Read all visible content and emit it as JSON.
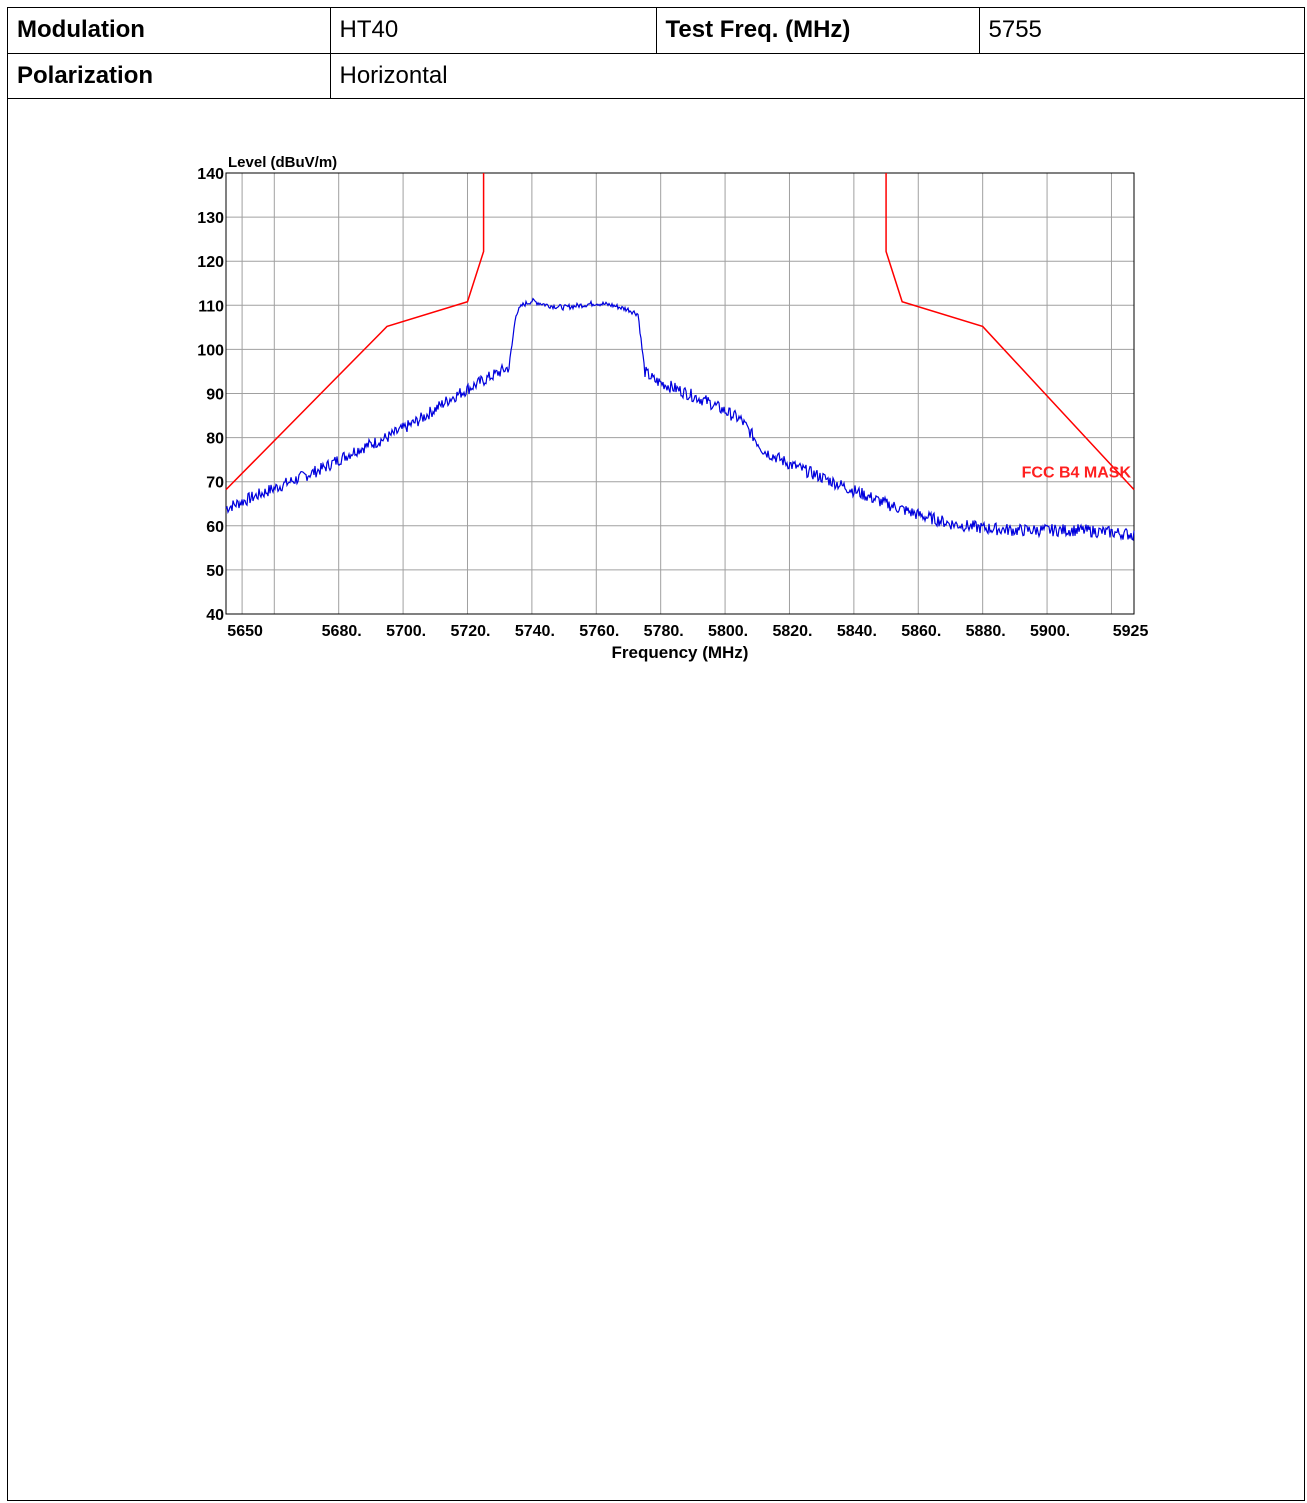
{
  "info": {
    "modulation_label": "Modulation",
    "modulation_value": "HT40",
    "test_freq_label": "Test Freq. (MHz)",
    "test_freq_value": "5755",
    "polarization_label": "Polarization",
    "polarization_value": "Horizontal"
  },
  "chart_data": {
    "type": "line",
    "ylabel": "Level (dBuV/m)",
    "xlabel": "Frequency (MHz)",
    "xlim": [
      5645,
      5927
    ],
    "ylim": [
      40,
      140
    ],
    "grid": true,
    "x_ticks": [
      {
        "value": 5650,
        "label": "5650"
      },
      {
        "value": 5680,
        "label": "5680."
      },
      {
        "value": 5700,
        "label": "5700."
      },
      {
        "value": 5720,
        "label": "5720."
      },
      {
        "value": 5740,
        "label": "5740."
      },
      {
        "value": 5760,
        "label": "5760."
      },
      {
        "value": 5780,
        "label": "5780."
      },
      {
        "value": 5800,
        "label": "5800."
      },
      {
        "value": 5820,
        "label": "5820."
      },
      {
        "value": 5840,
        "label": "5840."
      },
      {
        "value": 5860,
        "label": "5860."
      },
      {
        "value": 5880,
        "label": "5880."
      },
      {
        "value": 5900,
        "label": "5900."
      },
      {
        "value": 5925,
        "label": "5925"
      }
    ],
    "y_ticks": [
      40,
      50,
      60,
      70,
      80,
      90,
      100,
      110,
      120,
      130,
      140
    ],
    "x_grid": [
      5650,
      5660,
      5680,
      5700,
      5720,
      5740,
      5760,
      5780,
      5800,
      5820,
      5840,
      5860,
      5880,
      5900,
      5920
    ],
    "series": [
      {
        "name": "FCC B4 MASK",
        "color": "#ff0000",
        "segments": [
          {
            "x": [
              5645,
              5695,
              5720,
              5725,
              5725
            ],
            "y": [
              68.2,
              105.2,
              110.8,
              122.2,
              140
            ]
          },
          {
            "x": [
              5850,
              5850,
              5855,
              5880,
              5927
            ],
            "y": [
              140,
              122.2,
              110.8,
              105.2,
              68.2
            ]
          }
        ]
      },
      {
        "name": "",
        "color": "#0000dd",
        "x": [
          5645,
          5655,
          5665,
          5675,
          5685,
          5695,
          5705,
          5715,
          5725,
          5733,
          5735,
          5737,
          5740,
          5745,
          5750,
          5755,
          5760,
          5765,
          5770,
          5773,
          5775,
          5778,
          5785,
          5795,
          5805,
          5812,
          5820,
          5830,
          5840,
          5850,
          5860,
          5870,
          5880,
          5890,
          5900,
          5910,
          5920,
          5927
        ],
        "y": [
          64,
          67,
          70,
          73,
          77,
          80,
          84,
          89,
          93,
          96,
          108,
          110,
          111,
          110,
          109.5,
          110,
          110.5,
          110,
          109,
          108,
          95,
          93,
          91,
          88,
          84,
          77,
          74,
          71,
          68,
          65,
          62.5,
          60.5,
          59.5,
          59,
          59,
          59,
          58.5,
          58
        ]
      }
    ]
  }
}
